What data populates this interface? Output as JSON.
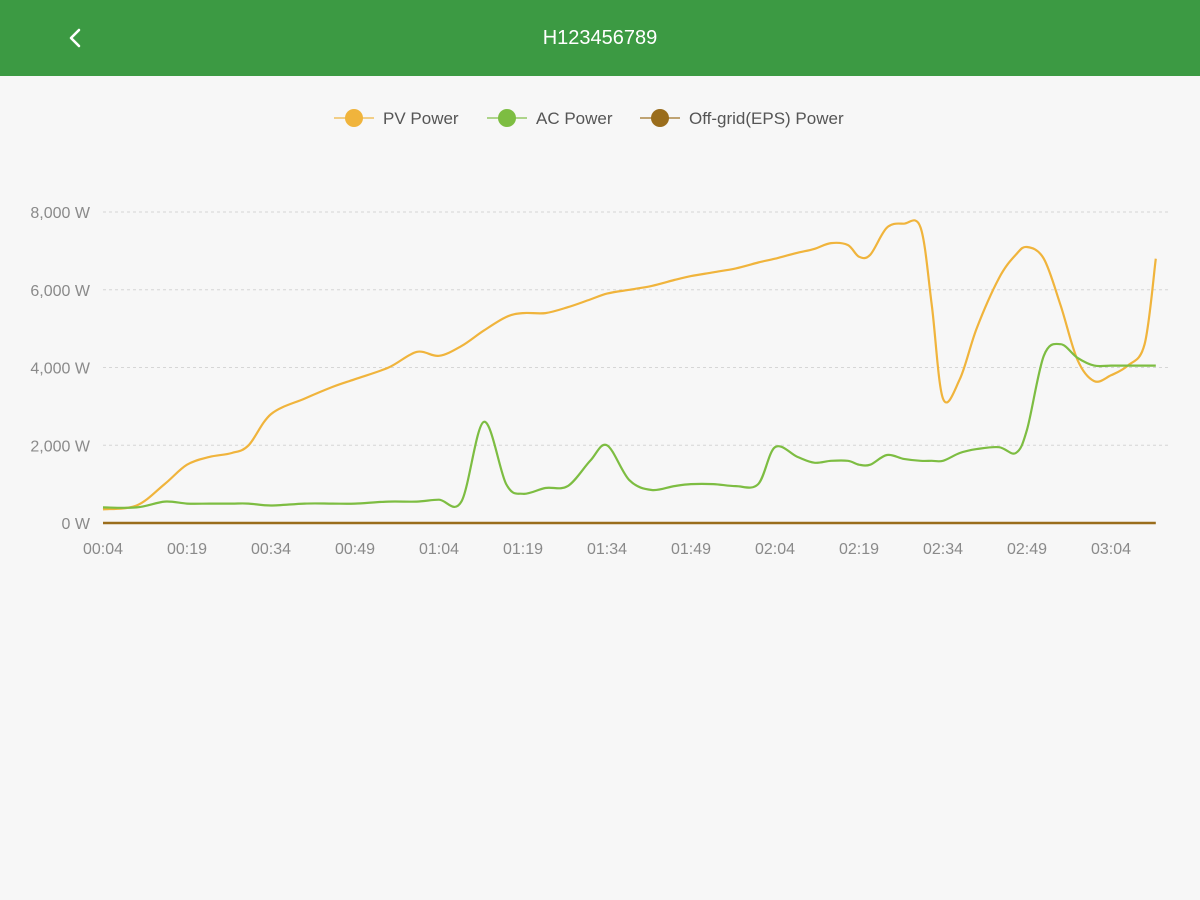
{
  "header": {
    "title": "H123456789",
    "back_icon": "chevron-left-icon",
    "background": "#3c9a43"
  },
  "chart_data": {
    "type": "line",
    "x_ticks": [
      "00:04",
      "00:19",
      "00:34",
      "00:49",
      "01:04",
      "01:19",
      "01:34",
      "01:49",
      "02:04",
      "02:19",
      "02:34",
      "02:49",
      "03:04"
    ],
    "x": [
      "00:04",
      "00:10",
      "00:15",
      "00:19",
      "00:23",
      "00:27",
      "00:30",
      "00:34",
      "00:40",
      "00:45",
      "00:49",
      "00:55",
      "01:00",
      "01:04",
      "01:08",
      "01:12",
      "01:16",
      "01:19",
      "01:23",
      "01:27",
      "01:31",
      "01:34",
      "01:38",
      "01:42",
      "01:46",
      "01:49",
      "01:53",
      "01:57",
      "02:01",
      "02:04",
      "02:08",
      "02:11",
      "02:14",
      "02:17",
      "02:19",
      "02:21",
      "02:24",
      "02:27",
      "02:30",
      "02:32",
      "02:34",
      "02:37",
      "02:40",
      "02:44",
      "02:47",
      "02:49",
      "02:52",
      "02:55",
      "02:58",
      "03:01",
      "03:04",
      "03:07",
      "03:10",
      "03:12"
    ],
    "y_ticks": [
      "0 W",
      "2,000 W",
      "4,000 W",
      "6,000 W",
      "8,000 W"
    ],
    "ylim": [
      0,
      8000
    ],
    "grid": true,
    "legend_position": "top-center",
    "series": [
      {
        "name": "PV Power",
        "color": "#f0b43c",
        "values": [
          350,
          450,
          1000,
          1500,
          1700,
          1800,
          2000,
          2800,
          3200,
          3500,
          3700,
          4000,
          4400,
          4300,
          4550,
          4950,
          5300,
          5400,
          5400,
          5550,
          5750,
          5900,
          6000,
          6100,
          6250,
          6350,
          6450,
          6550,
          6700,
          6800,
          6950,
          7050,
          7200,
          7150,
          6850,
          6900,
          7600,
          7700,
          7600,
          5600,
          3200,
          3700,
          5000,
          6300,
          6900,
          7100,
          6800,
          5600,
          4200,
          3650,
          3800,
          4050,
          4600,
          6800
        ]
      },
      {
        "name": "AC Power",
        "color": "#7dbd42",
        "values": [
          400,
          400,
          550,
          500,
          500,
          500,
          500,
          450,
          500,
          500,
          500,
          550,
          550,
          600,
          550,
          2600,
          1000,
          750,
          900,
          950,
          1600,
          2000,
          1100,
          850,
          950,
          1000,
          1000,
          950,
          1000,
          1950,
          1700,
          1550,
          1600,
          1600,
          1500,
          1500,
          1750,
          1650,
          1600,
          1600,
          1600,
          1800,
          1900,
          1950,
          1800,
          2400,
          4300,
          4600,
          4250,
          4050,
          4050,
          4050,
          4050,
          4050
        ]
      },
      {
        "name": "Off-grid(EPS) Power",
        "color": "#9a6d1c",
        "values": [
          0,
          0,
          0,
          0,
          0,
          0,
          0,
          0,
          0,
          0,
          0,
          0,
          0,
          0,
          0,
          0,
          0,
          0,
          0,
          0,
          0,
          0,
          0,
          0,
          0,
          0,
          0,
          0,
          0,
          0,
          0,
          0,
          0,
          0,
          0,
          0,
          0,
          0,
          0,
          0,
          0,
          0,
          0,
          0,
          0,
          0,
          0,
          0,
          0,
          0,
          0,
          0,
          0,
          0
        ]
      }
    ]
  }
}
